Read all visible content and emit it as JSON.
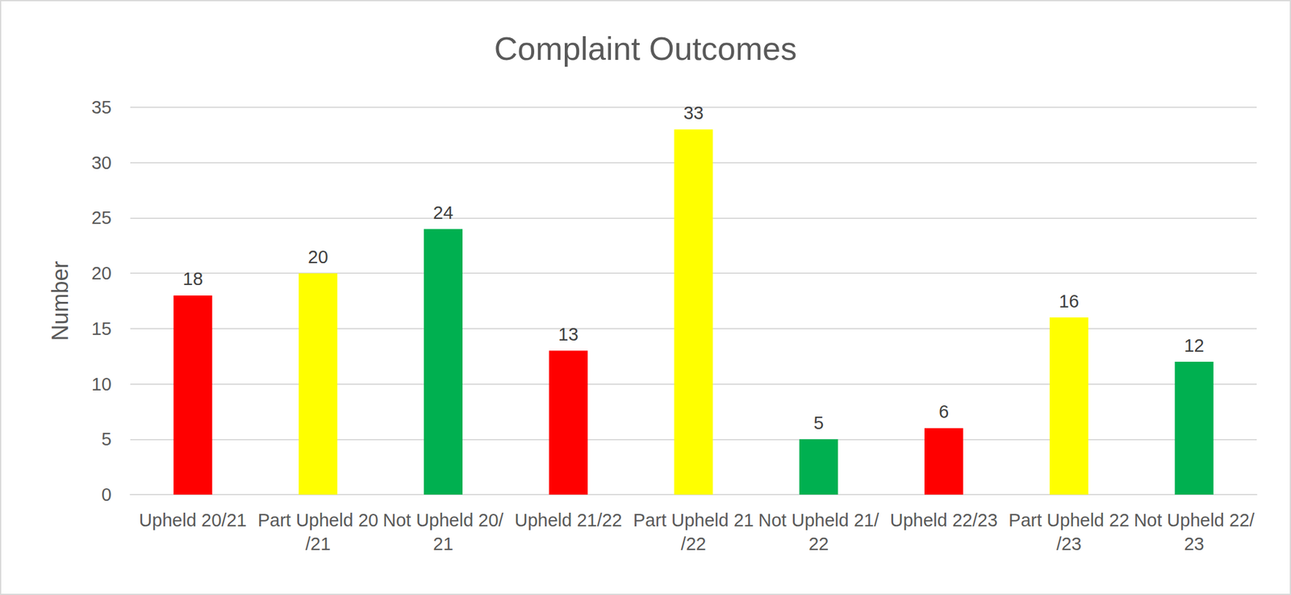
{
  "chart_data": {
    "type": "bar",
    "title": "Complaint Outcomes",
    "y_label": "Number",
    "categories": [
      "Upheld 20/21",
      "Part Upheld 20/21",
      "Not Upheld 20/21",
      "Upheld 21/22",
      "Part Upheld 21/22",
      "Not Upheld 21/22",
      "Upheld 22/23",
      "Part Upheld 22/23",
      "Not Upheld 22/23"
    ],
    "values": [
      18,
      20,
      24,
      13,
      33,
      5,
      6,
      16,
      12
    ],
    "colors": [
      "#ff0000",
      "#ffff00",
      "#00b050",
      "#ff0000",
      "#ffff00",
      "#00b050",
      "#ff0000",
      "#ffff00",
      "#00b050"
    ],
    "ylim": [
      0,
      35
    ],
    "yticks": [
      0,
      5,
      10,
      15,
      20,
      25,
      30,
      35
    ],
    "grid": true,
    "data_labels": true
  }
}
